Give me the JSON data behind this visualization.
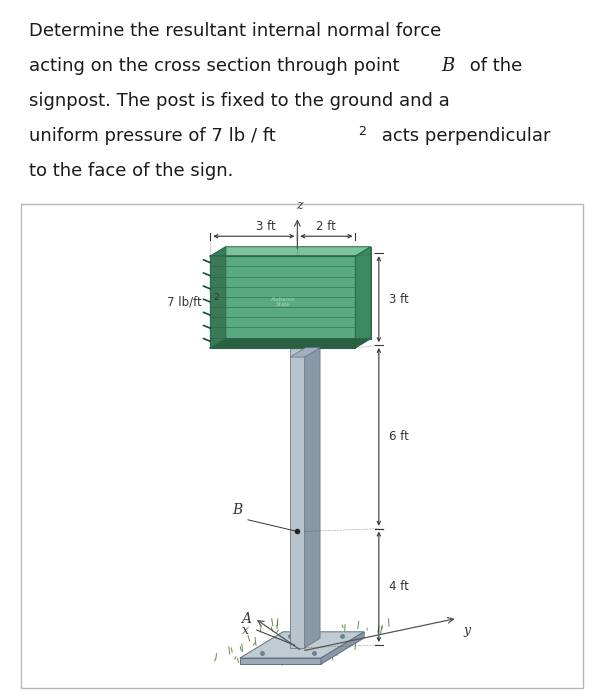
{
  "title_line1": "Determine the resultant internal normal force",
  "title_line2": "acting on the cross section through point ",
  "title_line2b": "B",
  "title_line2c": " of the",
  "title_line3": "signpost. The post is fixed to the ground and a",
  "title_line4": "uniform pressure of 7 lb / ft",
  "title_line4b": "2",
  "title_line4c": " acts perpendicular",
  "title_line5": "to the face of the sign.",
  "title_fontsize": 13.0,
  "title_color": "#1a1a1a",
  "bg_color": "#ffffff",
  "diagram_border": "#b0b8c0",
  "sign_color_front": "#5aaa80",
  "sign_color_top": "#7dc49a",
  "sign_color_side": "#3d8a60",
  "sign_color_back": "#4a9e78",
  "sign_stripe_dark": "#2a6044",
  "post_color_front": "#b8c4cc",
  "post_color_side": "#8898a8",
  "post_color_top": "#d0d8e0",
  "base_color_top": "#c0ccd4",
  "base_color_side": "#9aaab8",
  "grass_color": "#4a7a2a",
  "dim_color": "#333333",
  "label_fontsize": 8.5,
  "pressure_label": "7 lb/ft",
  "pressure_exp": "2",
  "dim_3ft_horiz": "3 ft",
  "dim_2ft": "2 ft",
  "dim_3ft_vert": "3 ft",
  "dim_6ft": "6 ft",
  "dim_4ft": "4 ft",
  "label_B": "B",
  "label_A": "A",
  "label_x": "x",
  "label_y": "y",
  "label_z": "z"
}
